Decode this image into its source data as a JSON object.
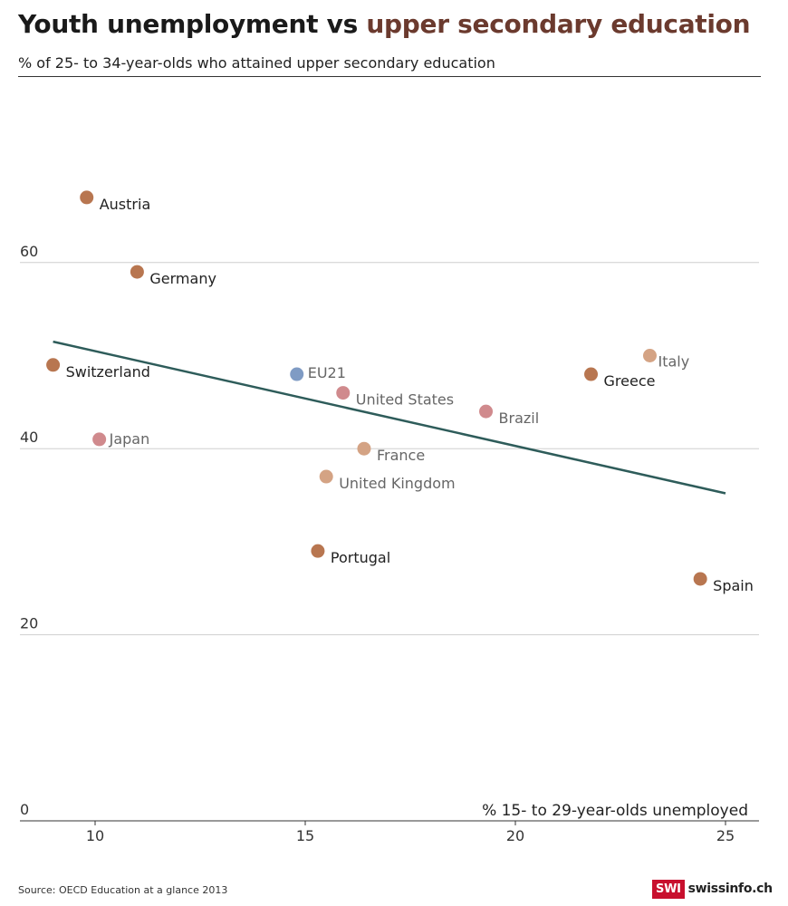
{
  "header": {
    "title_part1": "Youth unemployment vs ",
    "title_part2": "upper secondary education",
    "subtitle": "% of 25- to 34-year-olds who attained upper secondary education"
  },
  "footer": {
    "source": "Source: OECD Education at a glance 2013",
    "brand_badge": "SWI",
    "brand_name": "swissinfo.ch"
  },
  "colors": {
    "dark_brown": "#b87650",
    "light_tan": "#d4a384",
    "pink": "#d08a8d",
    "blue": "#7f9bc4",
    "trend": "#2e5c5a",
    "title_accent": "#6b3a2e"
  },
  "chart_data": {
    "type": "scatter",
    "title": "Youth unemployment vs upper secondary education",
    "ylabel": "% of 25- to 34-year-olds who attained upper secondary education",
    "xlabel": "% 15- to 29-year-olds unemployed",
    "xlim": [
      8.7,
      25.8
    ],
    "ylim": [
      0,
      80
    ],
    "x_ticks": [
      10,
      15,
      20,
      25
    ],
    "y_ticks": [
      0,
      20,
      40,
      60
    ],
    "grid": "horizontal",
    "points": [
      {
        "label": "Austria",
        "x": 9.8,
        "y": 67,
        "color": "#b87650",
        "label_color": "#222"
      },
      {
        "label": "Germany",
        "x": 11.0,
        "y": 59,
        "color": "#b87650",
        "label_color": "#222"
      },
      {
        "label": "Switzerland",
        "x": 9.0,
        "y": 49,
        "color": "#b87650",
        "label_color": "#222"
      },
      {
        "label": "Japan",
        "x": 10.1,
        "y": 41,
        "color": "#d08a8d",
        "label_color": "#666"
      },
      {
        "label": "EU21",
        "x": 14.8,
        "y": 48,
        "color": "#7f9bc4",
        "label_color": "#666"
      },
      {
        "label": "United States",
        "x": 15.9,
        "y": 46,
        "color": "#d08a8d",
        "label_color": "#666"
      },
      {
        "label": "France",
        "x": 16.4,
        "y": 40,
        "color": "#d4a384",
        "label_color": "#666"
      },
      {
        "label": "United Kingdom",
        "x": 15.5,
        "y": 37,
        "color": "#d4a384",
        "label_color": "#666"
      },
      {
        "label": "Portugal",
        "x": 15.3,
        "y": 29,
        "color": "#b87650",
        "label_color": "#222"
      },
      {
        "label": "Brazil",
        "x": 19.3,
        "y": 44,
        "color": "#d08a8d",
        "label_color": "#666"
      },
      {
        "label": "Greece",
        "x": 21.8,
        "y": 48,
        "color": "#b87650",
        "label_color": "#222"
      },
      {
        "label": "Italy",
        "x": 23.2,
        "y": 50,
        "color": "#d4a384",
        "label_color": "#666"
      },
      {
        "label": "Spain",
        "x": 24.4,
        "y": 26,
        "color": "#b87650",
        "label_color": "#222"
      }
    ],
    "trendline": {
      "x1": 9.0,
      "y1": 51.5,
      "x2": 25.0,
      "y2": 35.2
    }
  }
}
